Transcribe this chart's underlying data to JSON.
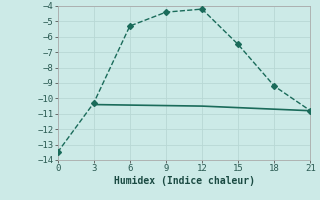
{
  "line1_x": [
    0,
    3,
    6,
    9,
    12,
    15,
    18,
    21
  ],
  "line1_y": [
    -13.5,
    -10.3,
    -5.3,
    -4.4,
    -4.2,
    -6.5,
    -9.2,
    -10.8
  ],
  "line2_x": [
    3,
    12,
    21
  ],
  "line2_y": [
    -10.4,
    -10.5,
    -10.8
  ],
  "line_color": "#1a6b5a",
  "bg_color": "#cceae7",
  "grid_color": "#b8d8d5",
  "xlabel": "Humidex (Indice chaleur)",
  "xlim": [
    0,
    21
  ],
  "ylim": [
    -14,
    -4
  ],
  "xticks": [
    0,
    3,
    6,
    9,
    12,
    15,
    18,
    21
  ],
  "yticks": [
    -14,
    -13,
    -12,
    -11,
    -10,
    -9,
    -8,
    -7,
    -6,
    -5,
    -4
  ],
  "marker": "D",
  "marker_size": 3,
  "linewidth": 1.0,
  "linestyle": "--"
}
